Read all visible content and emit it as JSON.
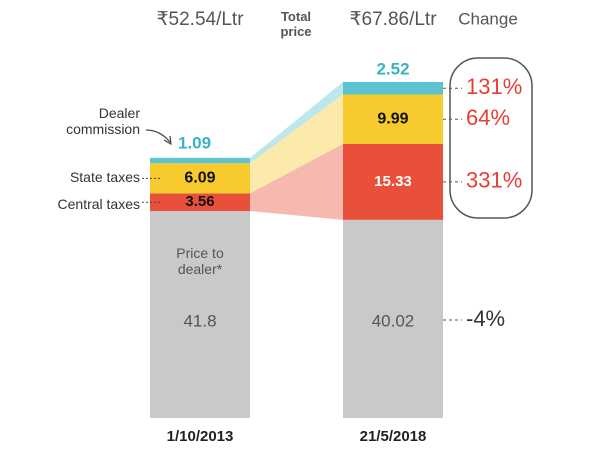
{
  "chart_data": {
    "type": "stacked-bar",
    "categories": [
      "1/10/2013",
      "21/5/2018"
    ],
    "totals": [
      "₹52.54/Ltr",
      "₹67.86/Ltr"
    ],
    "total_price_label": "Total price",
    "change_label": "Change",
    "series": [
      {
        "name": "Price to dealer*",
        "color": "#c9c9c9",
        "values": [
          41.8,
          40.02
        ]
      },
      {
        "name": "Central taxes",
        "color": "#e9503a",
        "values": [
          3.56,
          15.33
        ]
      },
      {
        "name": "State taxes",
        "color": "#f7cb2d",
        "values": [
          6.09,
          9.99
        ]
      },
      {
        "name": "Dealer commission",
        "color": "#5cc3cf",
        "values": [
          1.09,
          2.52
        ]
      }
    ],
    "changes": {
      "values": [
        -4,
        331,
        64,
        131
      ],
      "value_labels": [
        "-4%",
        "331%",
        "64%",
        "131%"
      ]
    }
  }
}
